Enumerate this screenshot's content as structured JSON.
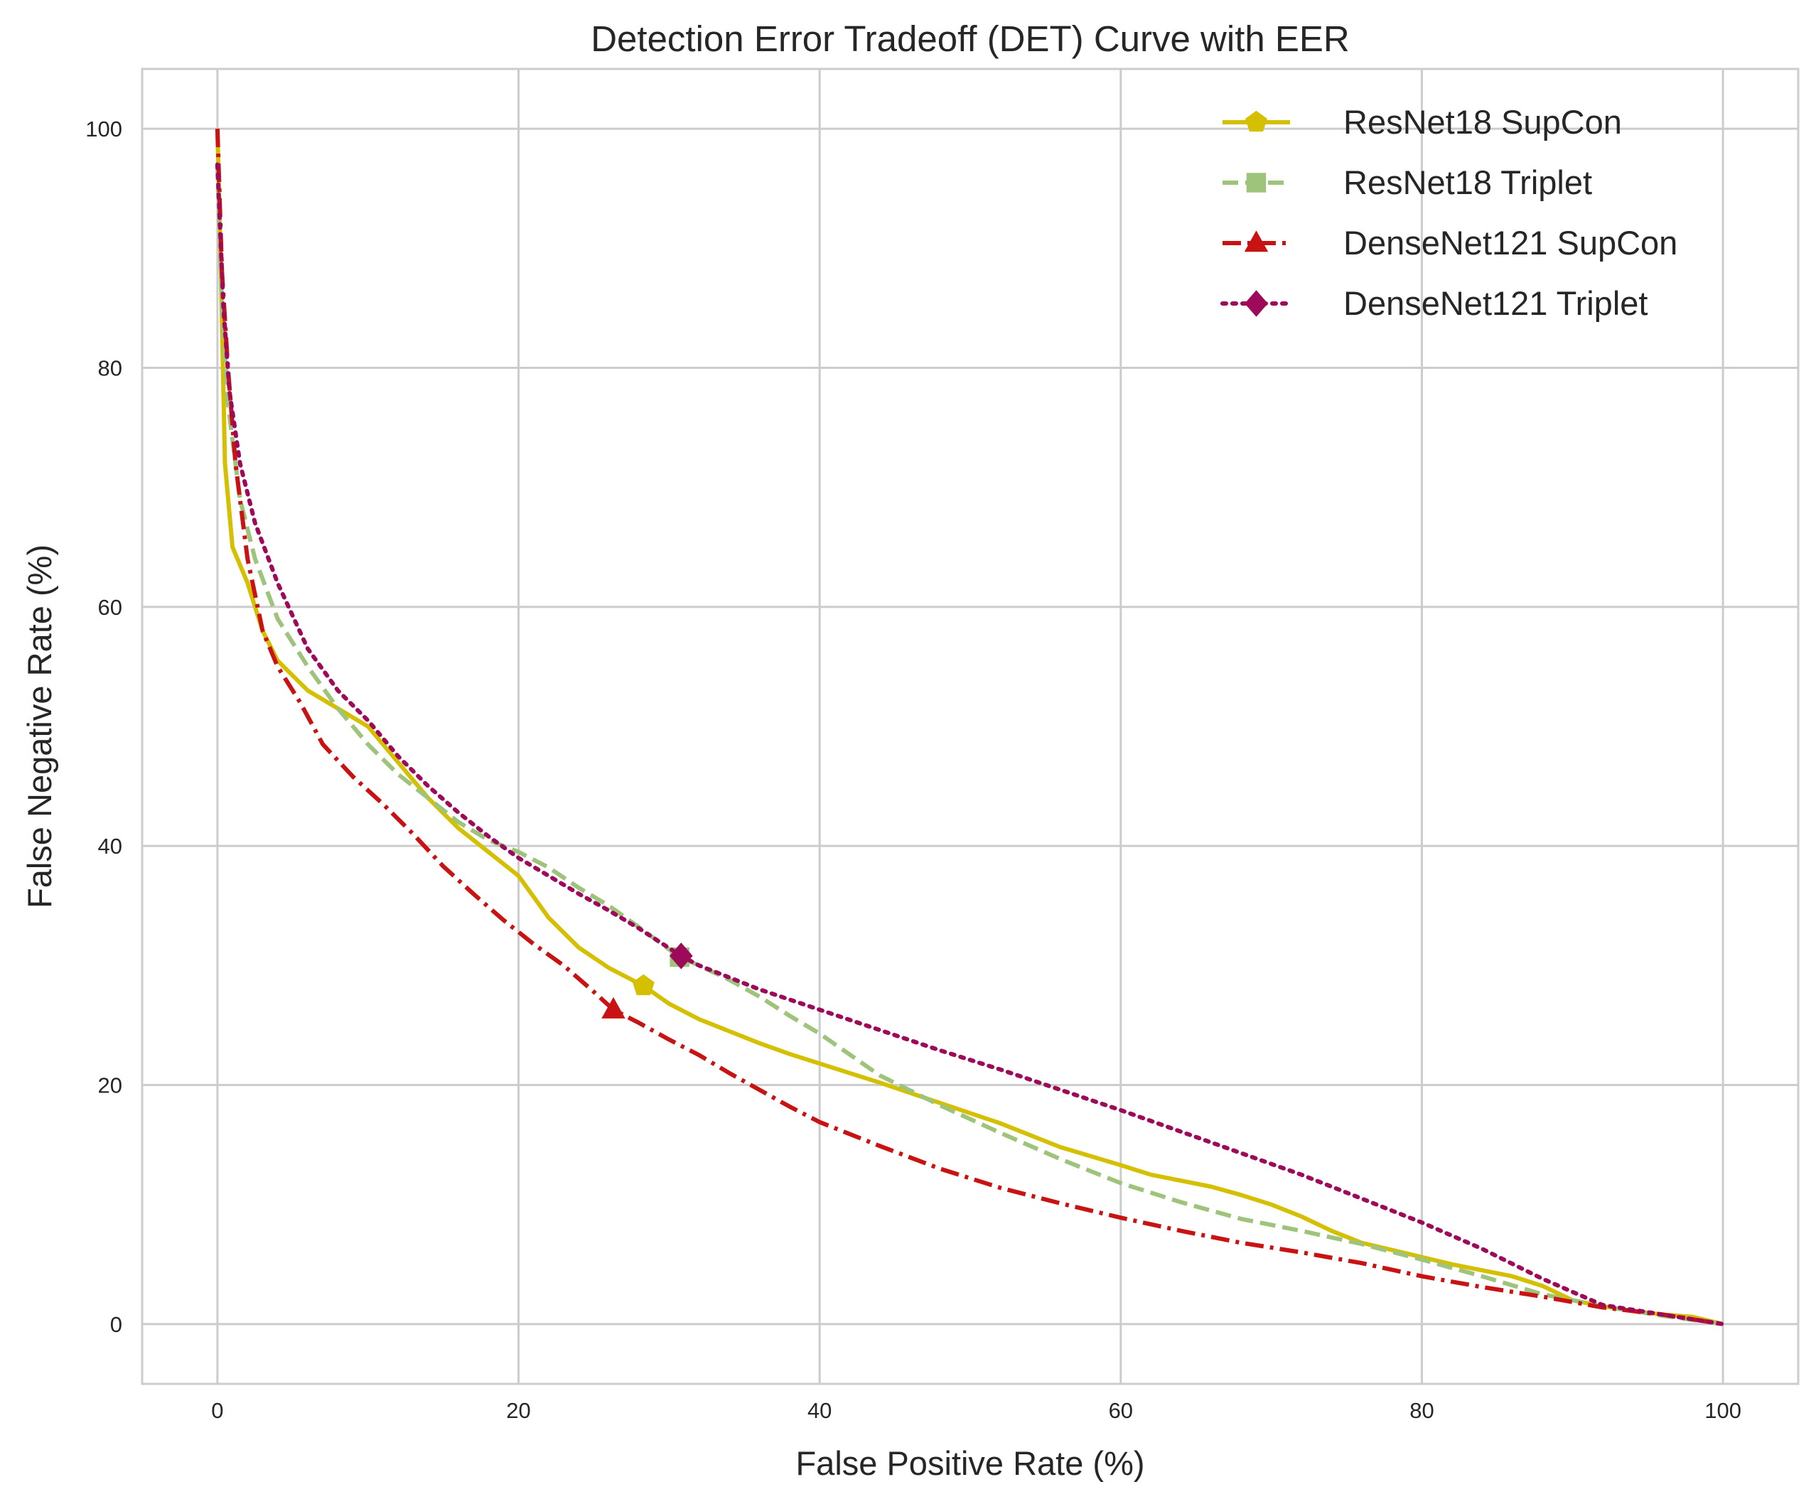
{
  "chart_data": {
    "type": "line",
    "title": "Detection Error Tradeoff (DET) Curve with EER",
    "xlabel": "False Positive Rate (%)",
    "ylabel": "False Negative Rate (%)",
    "xlim": [
      -5,
      105
    ],
    "ylim": [
      -5,
      105
    ],
    "xticks": [
      0,
      20,
      40,
      60,
      80,
      100
    ],
    "yticks": [
      0,
      20,
      40,
      60,
      80,
      100
    ],
    "grid": true,
    "legend_position": "top-right",
    "series": [
      {
        "name": "ResNet18 SupCon",
        "color": "#d4c000",
        "line_style": "solid",
        "marker": "pentagon",
        "eer_point": [
          28.3,
          28.3
        ],
        "points": [
          [
            0,
            100
          ],
          [
            0.2,
            90
          ],
          [
            0.5,
            72
          ],
          [
            1,
            65
          ],
          [
            2,
            62
          ],
          [
            3,
            58
          ],
          [
            4,
            55.5
          ],
          [
            6,
            53
          ],
          [
            8,
            51.5
          ],
          [
            10,
            50
          ],
          [
            12,
            47
          ],
          [
            14,
            44
          ],
          [
            16,
            41.5
          ],
          [
            18,
            39.5
          ],
          [
            20,
            37.5
          ],
          [
            22,
            34
          ],
          [
            24,
            31.5
          ],
          [
            26,
            29.8
          ],
          [
            28.3,
            28.3
          ],
          [
            30,
            26.8
          ],
          [
            32,
            25.5
          ],
          [
            34,
            24.5
          ],
          [
            36,
            23.5
          ],
          [
            38,
            22.6
          ],
          [
            40,
            21.8
          ],
          [
            44,
            20.2
          ],
          [
            48,
            18.5
          ],
          [
            52,
            16.8
          ],
          [
            56,
            14.8
          ],
          [
            60,
            13.3
          ],
          [
            62,
            12.5
          ],
          [
            64,
            12
          ],
          [
            66,
            11.5
          ],
          [
            68,
            10.8
          ],
          [
            70,
            10
          ],
          [
            72,
            9
          ],
          [
            74,
            7.8
          ],
          [
            76,
            6.8
          ],
          [
            78,
            6.2
          ],
          [
            80,
            5.6
          ],
          [
            82,
            5
          ],
          [
            84,
            4.5
          ],
          [
            86,
            4
          ],
          [
            88,
            3.2
          ],
          [
            90,
            2
          ],
          [
            92,
            1.5
          ],
          [
            94,
            1.1
          ],
          [
            96,
            0.8
          ],
          [
            98,
            0.6
          ],
          [
            100,
            0
          ]
        ]
      },
      {
        "name": "ResNet18 Triplet",
        "color": "#9dc47a",
        "line_style": "dashed",
        "marker": "square",
        "eer_point": [
          30.7,
          30.7
        ],
        "points": [
          [
            0,
            97
          ],
          [
            0.3,
            85
          ],
          [
            0.7,
            77
          ],
          [
            1.5,
            69
          ],
          [
            2.5,
            64
          ],
          [
            4,
            59
          ],
          [
            6,
            55
          ],
          [
            8,
            51.5
          ],
          [
            10,
            48.5
          ],
          [
            12,
            46
          ],
          [
            14,
            44
          ],
          [
            16,
            42
          ],
          [
            18,
            40.5
          ],
          [
            20,
            39.5
          ],
          [
            22,
            38.2
          ],
          [
            24,
            36.5
          ],
          [
            26,
            35
          ],
          [
            28,
            33.2
          ],
          [
            30.7,
            30.7
          ],
          [
            32,
            30
          ],
          [
            34,
            28.8
          ],
          [
            36,
            27.4
          ],
          [
            38,
            25.8
          ],
          [
            40,
            24.3
          ],
          [
            44,
            20.8
          ],
          [
            48,
            18.3
          ],
          [
            52,
            16
          ],
          [
            56,
            13.8
          ],
          [
            60,
            11.8
          ],
          [
            64,
            10.2
          ],
          [
            68,
            8.8
          ],
          [
            72,
            7.8
          ],
          [
            76,
            6.7
          ],
          [
            80,
            5.4
          ],
          [
            84,
            4
          ],
          [
            88,
            2.5
          ],
          [
            92,
            1.5
          ],
          [
            96,
            0.7
          ],
          [
            100,
            0
          ]
        ]
      },
      {
        "name": "DenseNet121 SupCon",
        "color": "#c91212",
        "line_style": "dashdot",
        "marker": "triangle",
        "eer_point": [
          26.3,
          26.3
        ],
        "points": [
          [
            0,
            100
          ],
          [
            0.3,
            88
          ],
          [
            0.7,
            80
          ],
          [
            1.2,
            72
          ],
          [
            2,
            64
          ],
          [
            3,
            58
          ],
          [
            4,
            55
          ],
          [
            5.5,
            52
          ],
          [
            7,
            48.5
          ],
          [
            9,
            45.8
          ],
          [
            11,
            43.5
          ],
          [
            13,
            41
          ],
          [
            15,
            38.3
          ],
          [
            17,
            36
          ],
          [
            19,
            33.8
          ],
          [
            21,
            31.8
          ],
          [
            23,
            30
          ],
          [
            25,
            27.8
          ],
          [
            26.3,
            26.3
          ],
          [
            28,
            25.2
          ],
          [
            30,
            23.8
          ],
          [
            32,
            22.5
          ],
          [
            34,
            21
          ],
          [
            36,
            19.6
          ],
          [
            38,
            18.2
          ],
          [
            40,
            16.9
          ],
          [
            44,
            14.9
          ],
          [
            48,
            13
          ],
          [
            52,
            11.4
          ],
          [
            56,
            10.1
          ],
          [
            60,
            8.9
          ],
          [
            64,
            7.8
          ],
          [
            68,
            6.8
          ],
          [
            72,
            6
          ],
          [
            76,
            5.1
          ],
          [
            80,
            4
          ],
          [
            84,
            3.1
          ],
          [
            88,
            2.3
          ],
          [
            92,
            1.4
          ],
          [
            96,
            0.8
          ],
          [
            100,
            0
          ]
        ]
      },
      {
        "name": "DenseNet121 Triplet",
        "color": "#9e0a5a",
        "line_style": "dotted",
        "marker": "diamond",
        "eer_point": [
          30.8,
          30.8
        ],
        "points": [
          [
            0,
            97
          ],
          [
            0.4,
            85
          ],
          [
            0.8,
            78
          ],
          [
            1.5,
            72
          ],
          [
            2.5,
            67
          ],
          [
            4,
            62
          ],
          [
            6,
            56.5
          ],
          [
            8,
            53
          ],
          [
            10,
            50.5
          ],
          [
            12,
            47.5
          ],
          [
            14,
            45
          ],
          [
            16,
            42.8
          ],
          [
            18,
            40.8
          ],
          [
            20,
            39
          ],
          [
            22,
            37.5
          ],
          [
            24,
            36
          ],
          [
            26,
            34.6
          ],
          [
            28,
            33.1
          ],
          [
            30.8,
            30.8
          ],
          [
            32,
            30
          ],
          [
            36,
            28
          ],
          [
            40,
            26.3
          ],
          [
            44,
            24.6
          ],
          [
            48,
            22.9
          ],
          [
            52,
            21.3
          ],
          [
            56,
            19.6
          ],
          [
            60,
            17.9
          ],
          [
            64,
            16.1
          ],
          [
            68,
            14.3
          ],
          [
            72,
            12.5
          ],
          [
            76,
            10.5
          ],
          [
            80,
            8.5
          ],
          [
            84,
            6.3
          ],
          [
            88,
            3.8
          ],
          [
            92,
            1.6
          ],
          [
            96,
            0.8
          ],
          [
            100,
            0
          ]
        ]
      }
    ]
  }
}
